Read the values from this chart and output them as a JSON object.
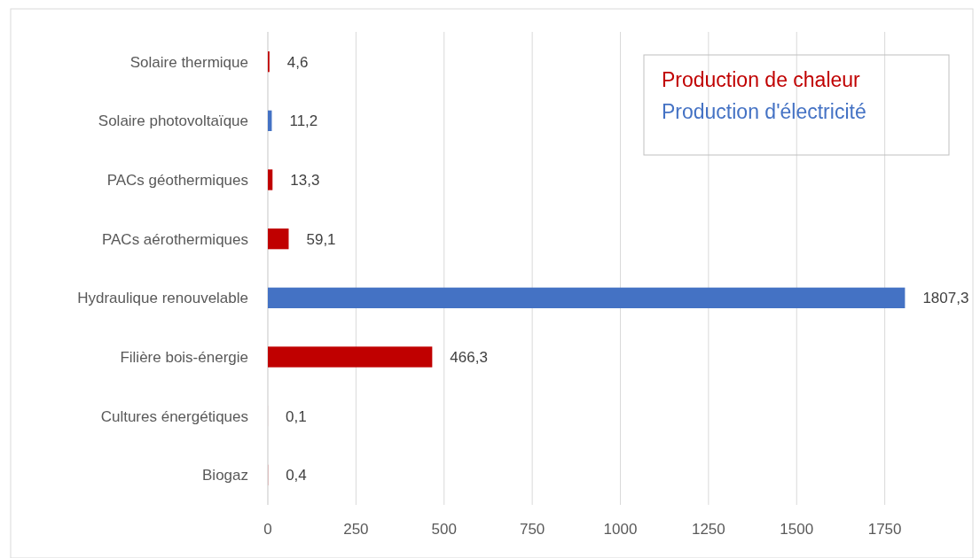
{
  "chart_data": {
    "type": "bar",
    "orientation": "horizontal",
    "stacked": true,
    "categories": [
      "Solaire thermique",
      "Solaire photovoltaïque",
      "PACs géothermiques",
      "PACs aérothermiques",
      "Hydraulique renouvelable",
      "Filière bois-énergie",
      "Cultures énergétiques",
      "Biogaz"
    ],
    "series": [
      {
        "name": "Production de chaleur",
        "color": "#c00000",
        "values": [
          4.6,
          null,
          13.3,
          59.1,
          null,
          466.3,
          0.1,
          0.4
        ],
        "value_labels": [
          "4,6",
          null,
          "13,3",
          "59,1",
          null,
          "466,3",
          "0,1",
          "0,4"
        ]
      },
      {
        "name": "Production d'électricité",
        "color": "#4472c4",
        "values": [
          null,
          11.2,
          null,
          null,
          1807.3,
          null,
          null,
          null
        ],
        "value_labels": [
          null,
          "11,2",
          null,
          null,
          "1807,3",
          null,
          null,
          null
        ]
      }
    ],
    "xlim": [
      0,
      2000
    ],
    "xticks": [
      0,
      250,
      500,
      750,
      1000,
      1250,
      1500,
      1750
    ],
    "grid": "x",
    "legend": "top right"
  }
}
